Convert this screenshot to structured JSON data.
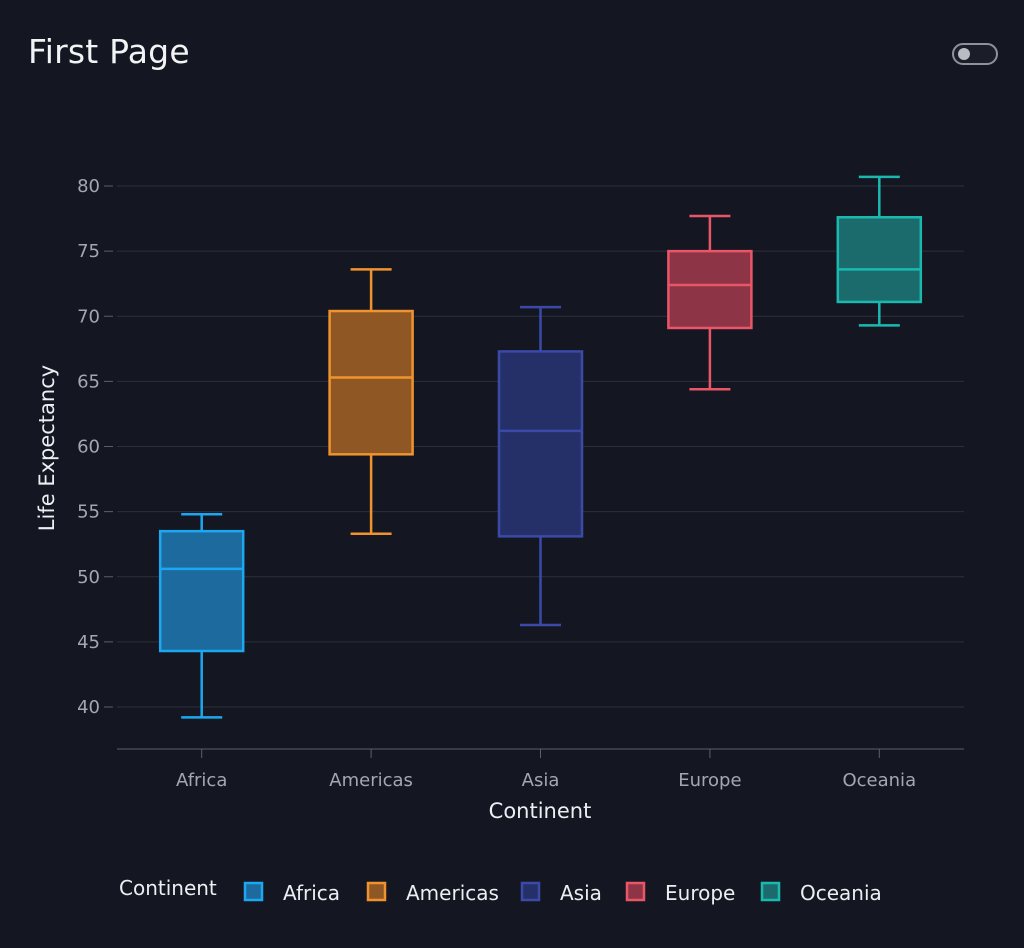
{
  "page": {
    "title": "First Page"
  },
  "toggle": {
    "state": "off"
  },
  "chart_data": {
    "type": "box",
    "title": "",
    "xlabel": "Continent",
    "ylabel": "Life Expectancy",
    "ylim": [
      36.5,
      82
    ],
    "yticks": [
      40,
      45,
      50,
      55,
      60,
      65,
      70,
      75,
      80
    ],
    "grid": true,
    "legend": {
      "title": "Continent",
      "placement": "bottom"
    },
    "categories": [
      "Africa",
      "Americas",
      "Asia",
      "Europe",
      "Oceania"
    ],
    "series": [
      {
        "name": "Africa",
        "color": "#1ba8f0",
        "fill": "#1d6a9e",
        "min": 39.2,
        "q1": 44.3,
        "median": 50.6,
        "q3": 53.5,
        "max": 54.8
      },
      {
        "name": "Americas",
        "color": "#f0932e",
        "fill": "#8e5723",
        "min": 53.3,
        "q1": 59.4,
        "median": 65.3,
        "q3": 70.4,
        "max": 73.6
      },
      {
        "name": "Asia",
        "color": "#3b4aa8",
        "fill": "#252f68",
        "min": 46.3,
        "q1": 53.1,
        "median": 61.2,
        "q3": 67.3,
        "max": 70.7
      },
      {
        "name": "Europe",
        "color": "#ea5668",
        "fill": "#8d3446",
        "min": 64.4,
        "q1": 69.1,
        "median": 72.4,
        "q3": 75.0,
        "max": 77.7
      },
      {
        "name": "Oceania",
        "color": "#1ab9b0",
        "fill": "#1c6b6c",
        "min": 69.3,
        "q1": 71.1,
        "median": 73.6,
        "q3": 77.6,
        "max": 80.7
      }
    ]
  }
}
